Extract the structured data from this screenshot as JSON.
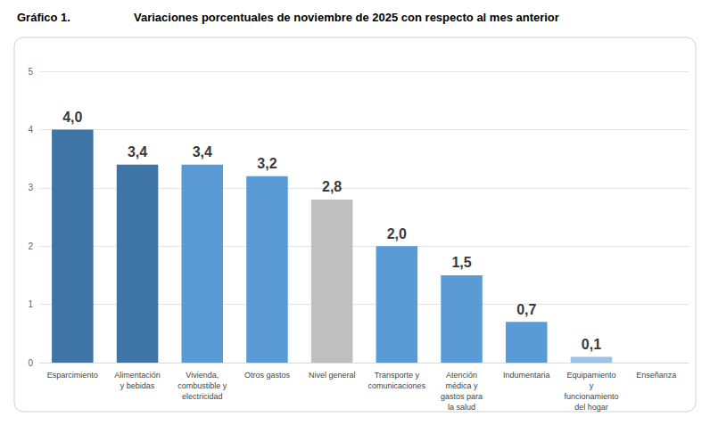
{
  "chart_data": {
    "type": "bar",
    "figure_label": "Gráfico 1.",
    "title": "Variaciones porcentuales de noviembre de 2025 con respecto al mes anterior",
    "categories": [
      "Esparcimiento",
      "Alimentación y bebidas",
      "Vivienda, combustible y electricidad",
      "Otros gastos",
      "Nivel general",
      "Transporte y comunicaciones",
      "Atención médica y gastos para la salud",
      "Indumentaria",
      "Equipamiento y funcionamiento del hogar",
      "Enseñanza"
    ],
    "values": [
      4.0,
      3.4,
      3.4,
      3.2,
      2.8,
      2.0,
      1.5,
      0.7,
      0.1,
      0
    ],
    "value_labels": [
      "4,0",
      "3,4",
      "3,4",
      "3,2",
      "2,8",
      "2,0",
      "1,5",
      "0,7",
      "0,1",
      null
    ],
    "colors": [
      "#3f74a6",
      "#3f74a6",
      "#5b9bd5",
      "#5b9bd5",
      "#bfbfbf",
      "#5b9bd5",
      "#5b9bd5",
      "#5b9bd5",
      "#9dc3e6",
      "#5fbfbf"
    ],
    "ylim": [
      0,
      5
    ],
    "yticks": [
      0,
      1,
      2,
      3,
      4,
      5
    ],
    "grid": true,
    "data_labels": true
  }
}
